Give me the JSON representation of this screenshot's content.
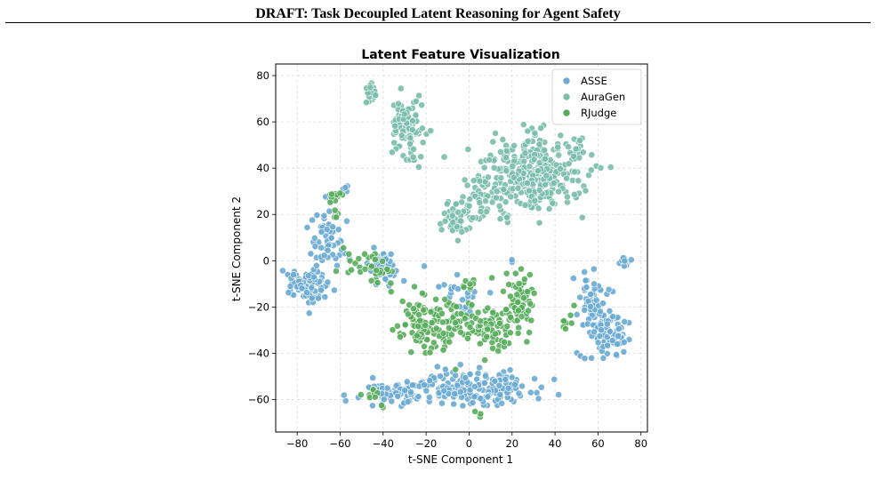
{
  "page": {
    "running_header": "DRAFT: Task Decoupled Latent Reasoning for Agent Safety"
  },
  "chart_data": {
    "type": "scatter",
    "title": "Latent Feature Visualization",
    "xlabel": "t-SNE Component 1",
    "ylabel": "t-SNE Component 2",
    "xlim": [
      -90,
      83
    ],
    "ylim": [
      -74,
      85
    ],
    "xticks": [
      -80,
      -60,
      -40,
      -20,
      0,
      20,
      40,
      60,
      80
    ],
    "yticks": [
      -60,
      -40,
      -20,
      0,
      20,
      40,
      60,
      80
    ],
    "xtick_labels": [
      "−80",
      "−60",
      "−40",
      "−20",
      "0",
      "20",
      "40",
      "60",
      "80"
    ],
    "ytick_labels": [
      "−60",
      "−40",
      "−20",
      "0",
      "20",
      "40",
      "60",
      "80"
    ],
    "grid": true,
    "legend_position": "top-right",
    "series": [
      {
        "name": "ASSE",
        "color": "#6aaad3",
        "clusters": [
          {
            "center": [
              -77,
              -11
            ],
            "spread": [
              5,
              4
            ],
            "count": 80
          },
          {
            "center": [
              -66,
              9
            ],
            "spread": [
              3.5,
              6
            ],
            "count": 60
          },
          {
            "center": [
              -40,
              -2
            ],
            "spread": [
              4,
              3
            ],
            "count": 45
          },
          {
            "center": [
              -57,
              31
            ],
            "spread": [
              1,
              1
            ],
            "count": 4
          },
          {
            "center": [
              -34,
              -57
            ],
            "spread": [
              8,
              2.5
            ],
            "count": 80
          },
          {
            "center": [
              -13,
              -54
            ],
            "spread": [
              6,
              3
            ],
            "count": 55
          },
          {
            "center": [
              12,
              -56
            ],
            "spread": [
              10,
              3.5
            ],
            "count": 130
          },
          {
            "center": [
              57,
              -18
            ],
            "spread": [
              4,
              6
            ],
            "count": 55
          },
          {
            "center": [
              61,
              -32
            ],
            "spread": [
              4,
              5
            ],
            "count": 45
          },
          {
            "center": [
              70,
              -33
            ],
            "spread": [
              3,
              5
            ],
            "count": 30
          },
          {
            "center": [
              72,
              0
            ],
            "spread": [
              1.5,
              1.5
            ],
            "count": 12
          },
          {
            "center": [
              -5,
              -15
            ],
            "spread": [
              6,
              6
            ],
            "count": 25
          },
          {
            "center": [
              20,
              0
            ],
            "spread": [
              1,
              1
            ],
            "count": 2
          }
        ]
      },
      {
        "name": "AuraGen",
        "color": "#79bdac",
        "clusters": [
          {
            "center": [
              -46,
              73
            ],
            "spread": [
              1.5,
              2
            ],
            "count": 18
          },
          {
            "center": [
              -28,
              58
            ],
            "spread": [
              4,
              7
            ],
            "count": 110
          },
          {
            "center": [
              30,
              38
            ],
            "spread": [
              12,
              8
            ],
            "count": 340
          },
          {
            "center": [
              8,
              28
            ],
            "spread": [
              5,
              6
            ],
            "count": 40
          },
          {
            "center": [
              -5,
              17
            ],
            "spread": [
              4,
              4
            ],
            "count": 45
          }
        ]
      },
      {
        "name": "RJudge",
        "color": "#57ac5b",
        "clusters": [
          {
            "center": [
              -63,
              28
            ],
            "spread": [
              1.5,
              1.5
            ],
            "count": 10
          },
          {
            "center": [
              -62,
              20
            ],
            "spread": [
              1,
              1
            ],
            "count": 5
          },
          {
            "center": [
              -50,
              0
            ],
            "spread": [
              5,
              4
            ],
            "count": 22
          },
          {
            "center": [
              -40,
              -6
            ],
            "spread": [
              3,
              3
            ],
            "count": 12
          },
          {
            "center": [
              -20,
              -27
            ],
            "spread": [
              7,
              6
            ],
            "count": 110
          },
          {
            "center": [
              5,
              -28
            ],
            "spread": [
              8,
              6
            ],
            "count": 90
          },
          {
            "center": [
              24,
              -18
            ],
            "spread": [
              4,
              7
            ],
            "count": 60
          },
          {
            "center": [
              45,
              -25
            ],
            "spread": [
              2,
              3
            ],
            "count": 8
          },
          {
            "center": [
              -45,
              -58
            ],
            "spread": [
              2,
              1.5
            ],
            "count": 8
          },
          {
            "center": [
              -40,
              -63
            ],
            "spread": [
              0.5,
              0.5
            ],
            "count": 2
          },
          {
            "center": [
              5,
              -66
            ],
            "spread": [
              1,
              1
            ],
            "count": 3
          },
          {
            "center": [
              0,
              -10
            ],
            "spread": [
              2,
              1.5
            ],
            "count": 8
          }
        ]
      }
    ]
  }
}
